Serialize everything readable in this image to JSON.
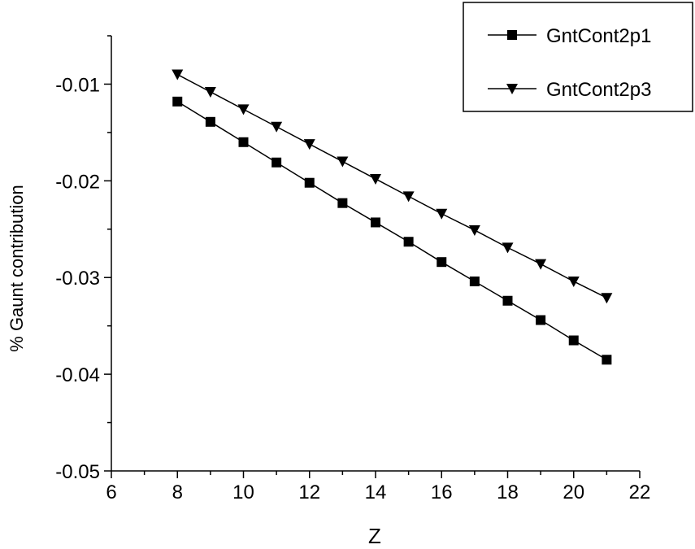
{
  "chart_data": {
    "type": "line",
    "xlabel": "Z",
    "ylabel": "% Gaunt contribution",
    "xlim": [
      6,
      22
    ],
    "ylim": [
      -0.05,
      -0.005
    ],
    "xticks": [
      "6",
      "8",
      "10",
      "12",
      "14",
      "16",
      "18",
      "20",
      "22"
    ],
    "yticks": [
      "-0.01",
      "-0.02",
      "-0.03",
      "-0.04",
      "-0.05"
    ],
    "grid": false,
    "legend_position": "top-right",
    "x": [
      8,
      9,
      10,
      11,
      12,
      13,
      14,
      15,
      16,
      17,
      18,
      19,
      20,
      21
    ],
    "series": [
      {
        "name": "GntCont2p1",
        "marker": "square",
        "color": "#000000",
        "values": [
          -0.0118,
          -0.0139,
          -0.016,
          -0.0181,
          -0.0202,
          -0.0223,
          -0.0243,
          -0.0263,
          -0.0284,
          -0.0304,
          -0.0324,
          -0.0344,
          -0.0365,
          -0.0385
        ]
      },
      {
        "name": "GntCont2p3",
        "marker": "triangle-down",
        "color": "#000000",
        "values": [
          -0.009,
          -0.0108,
          -0.0126,
          -0.0144,
          -0.0162,
          -0.018,
          -0.0198,
          -0.0216,
          -0.0234,
          -0.0251,
          -0.0269,
          -0.0286,
          -0.0304,
          -0.0321
        ]
      }
    ]
  }
}
